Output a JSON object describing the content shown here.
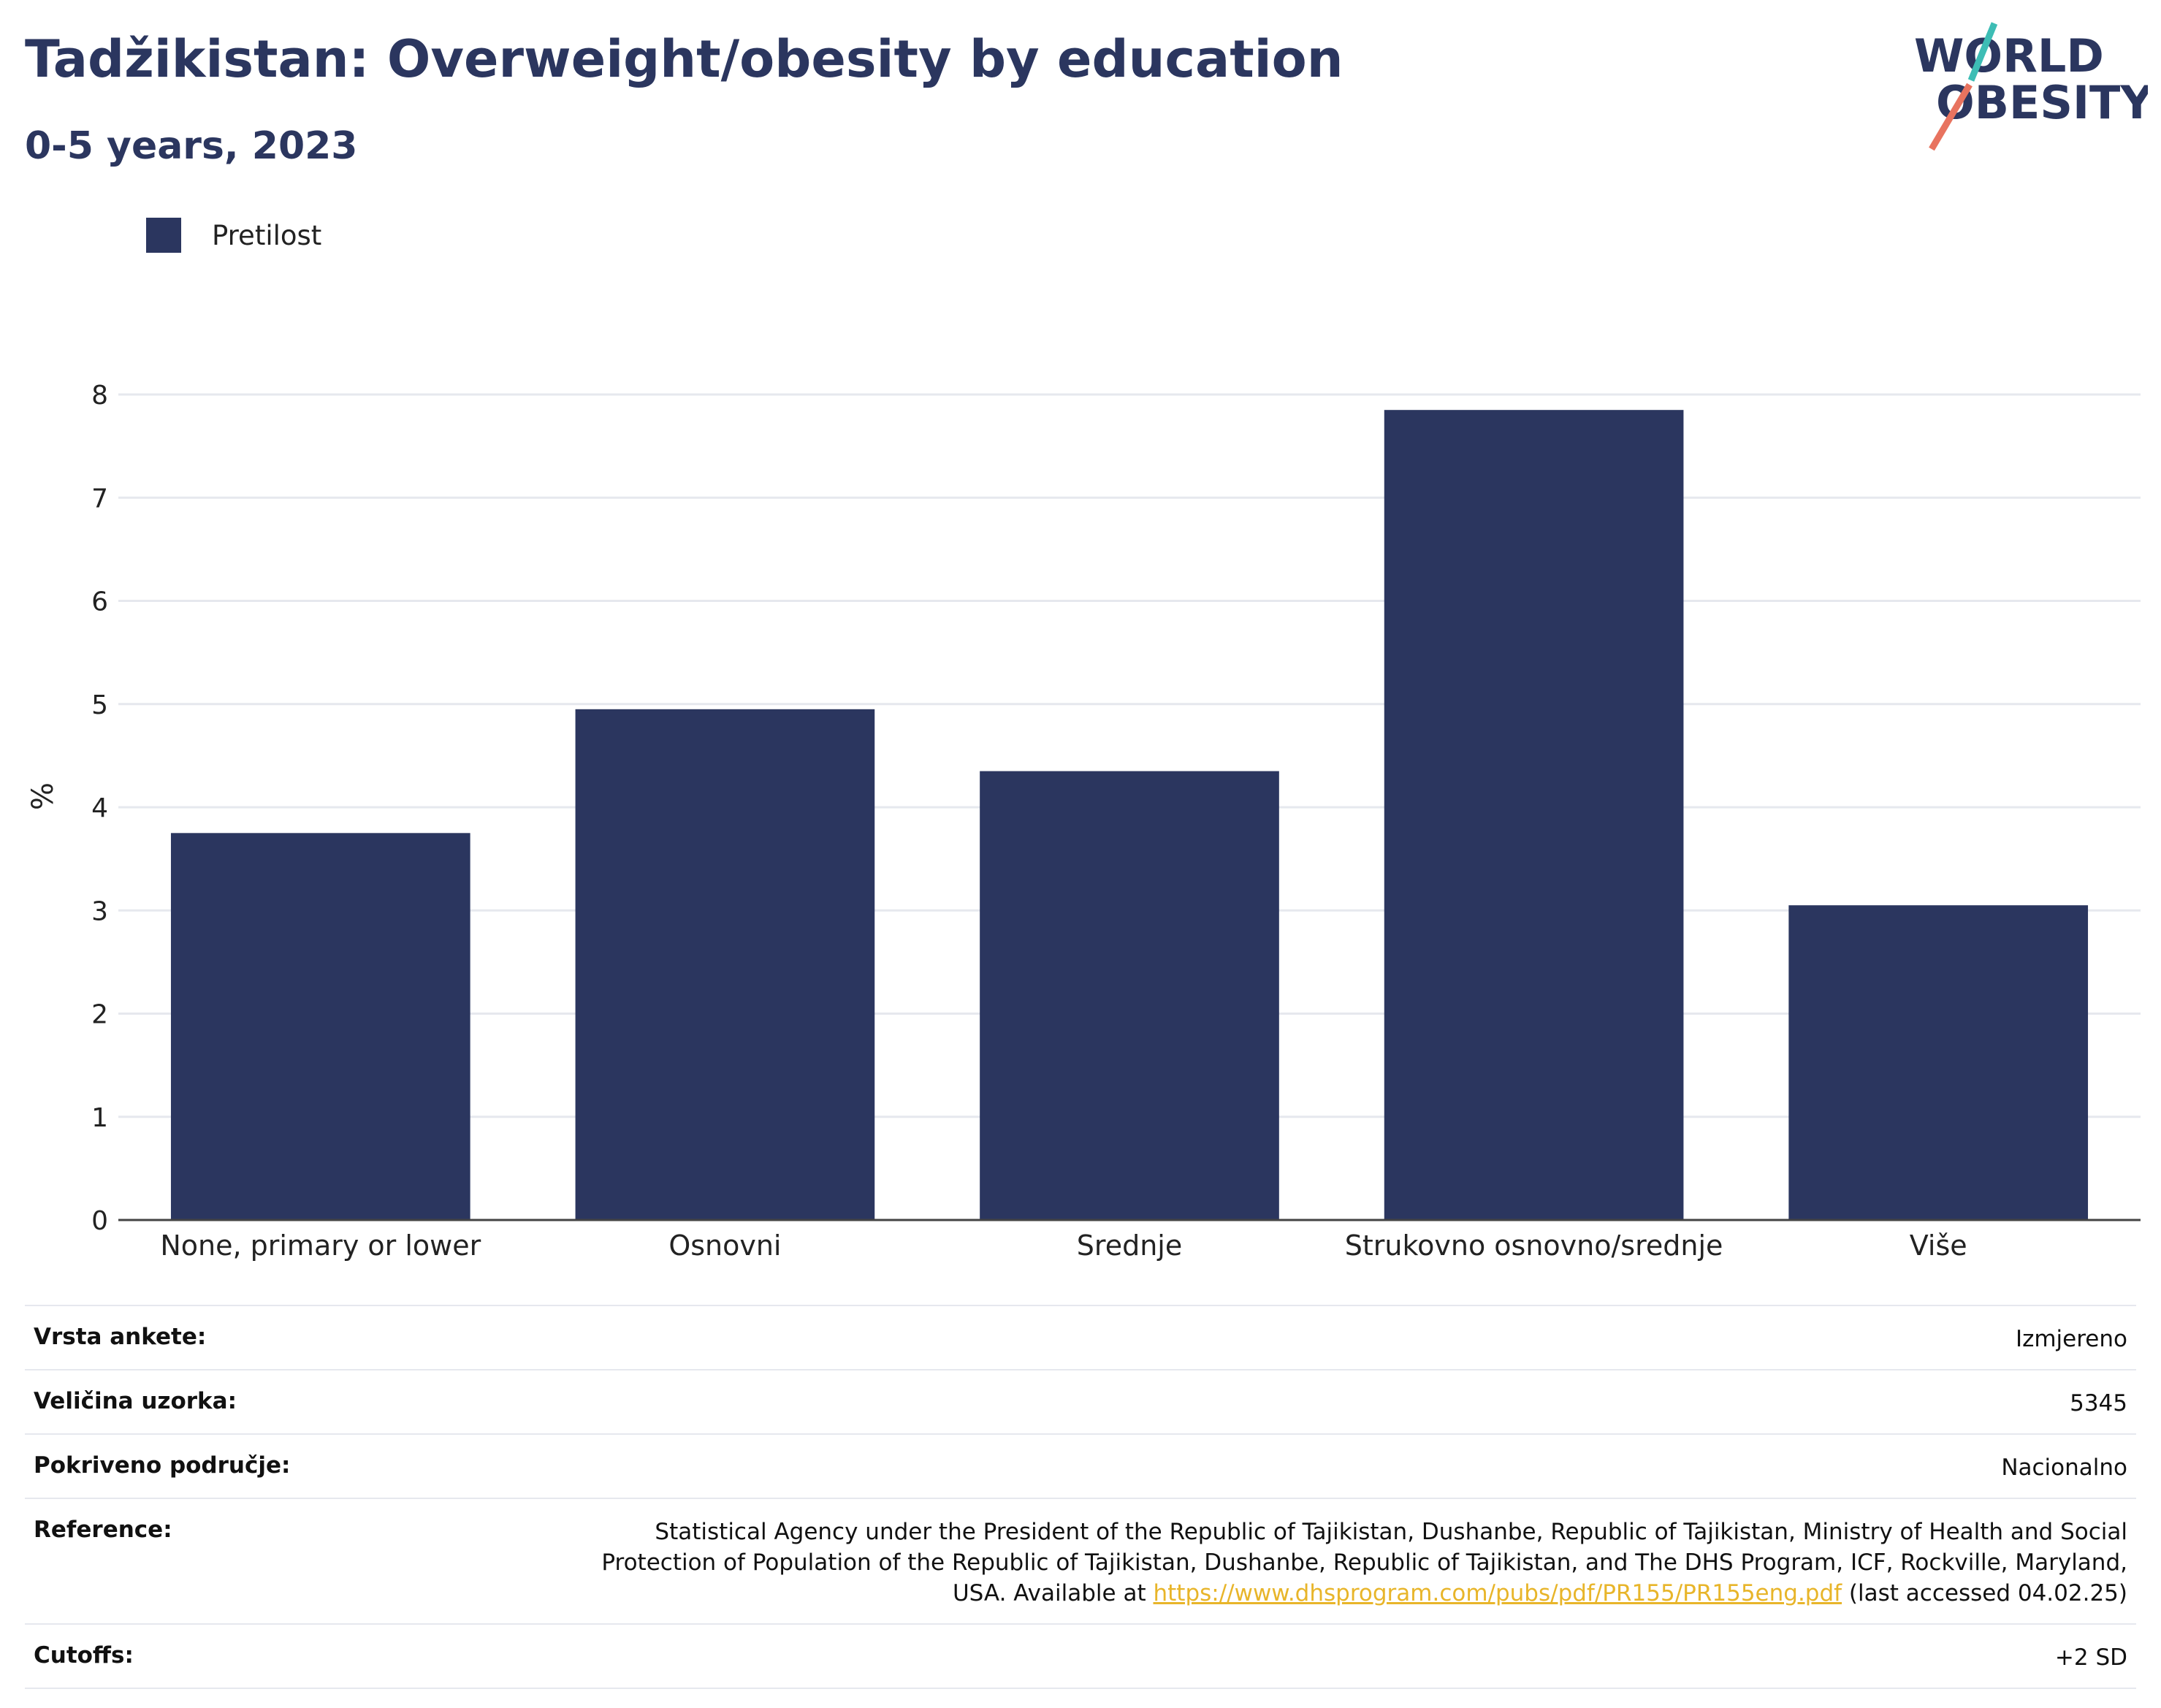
{
  "header": {
    "title": "Tadžikistan: Overweight/obesity by education",
    "subtitle": "0-5 years, 2023"
  },
  "logo": {
    "line1": "WORLD",
    "line2": "OBESITY",
    "accent_teal": "#3dbdb5",
    "accent_coral": "#e8735f",
    "text_color": "#2b365f"
  },
  "chart_data": {
    "type": "bar",
    "categories": [
      "None, primary or lower",
      "Osnovni",
      "Srednje",
      "Strukovno osnovno/srednje",
      "Više"
    ],
    "series": [
      {
        "name": "Pretilost",
        "values": [
          3.75,
          4.95,
          4.35,
          7.85,
          3.05
        ],
        "color": "#2b365f"
      }
    ],
    "ylabel": "%",
    "ylim": [
      0,
      8
    ],
    "yticks": [
      0,
      1,
      2,
      3,
      4,
      5,
      6,
      7,
      8
    ],
    "grid": true,
    "legend_position": "top-left"
  },
  "info": {
    "rows": [
      {
        "label": "Vrsta ankete:",
        "value": "Izmjereno"
      },
      {
        "label": "Veličina uzorka:",
        "value": "5345"
      },
      {
        "label": "Pokriveno područje:",
        "value": "Nacionalno"
      }
    ],
    "reference": {
      "label": "Reference:",
      "text_before": "Statistical Agency under the President of the Republic of Tajikistan, Dushanbe, Republic of Tajikistan, Ministry of Health and Social Protection of Population of the Republic of Tajikistan, Dushanbe, Republic of Tajikistan, and The DHS Program, ICF, Rockville, Maryland, USA. Available at ",
      "link": "https://www.dhsprogram.com/pubs/pdf/PR155/PR155eng.pdf",
      "text_after": " (last accessed 04.02.25)"
    },
    "cutoffs": {
      "label": "Cutoffs:",
      "value": "+2 SD"
    }
  }
}
